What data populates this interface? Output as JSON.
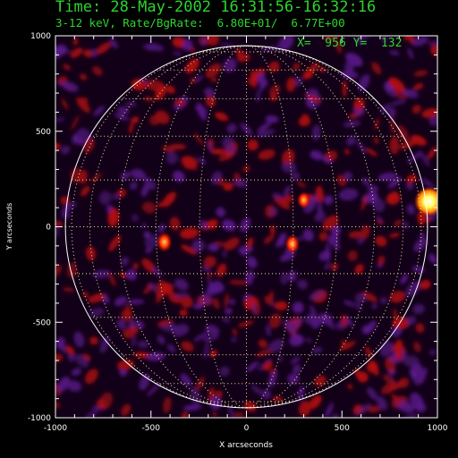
{
  "header": {
    "title": "Time: 28-May-2002 16:31:56-16:32:16",
    "subtitle": "3-12 keV, Rate/BgRate:  6.80E+01/  6.77E+00",
    "coord_readout": "X=  956 Y=  132"
  },
  "chart_data": {
    "type": "heatmap",
    "xlabel": "X arcseconds",
    "ylabel": "Y arcseconds",
    "xlim": [
      -1000,
      1000
    ],
    "ylim": [
      -1000,
      1000
    ],
    "x_ticks": [
      -1000,
      -500,
      0,
      500,
      1000
    ],
    "y_ticks": [
      1000,
      500,
      0,
      -500,
      -1000
    ],
    "x_tick_labels": [
      "-1000",
      "-500",
      "0",
      "500",
      "1000"
    ],
    "y_tick_labels": [
      "1000",
      "500",
      "0",
      "-500",
      "-1000"
    ],
    "solar_radius": 948,
    "grid_spacing_deg": 15,
    "sources": [
      {
        "x": 956,
        "y": 132,
        "intensity": 1.0
      },
      {
        "x": -430,
        "y": -80,
        "intensity": 0.6
      },
      {
        "x": 240,
        "y": -90,
        "intensity": 0.55
      },
      {
        "x": 300,
        "y": 140,
        "intensity": 0.45
      }
    ],
    "colors": {
      "background": "#000000",
      "limb": "#ffffff",
      "grid": "#e8e89a",
      "header_text": "#2fd32f",
      "purple": "#5a1a8a",
      "red": "#b81010",
      "hot": "#ffff40"
    }
  }
}
